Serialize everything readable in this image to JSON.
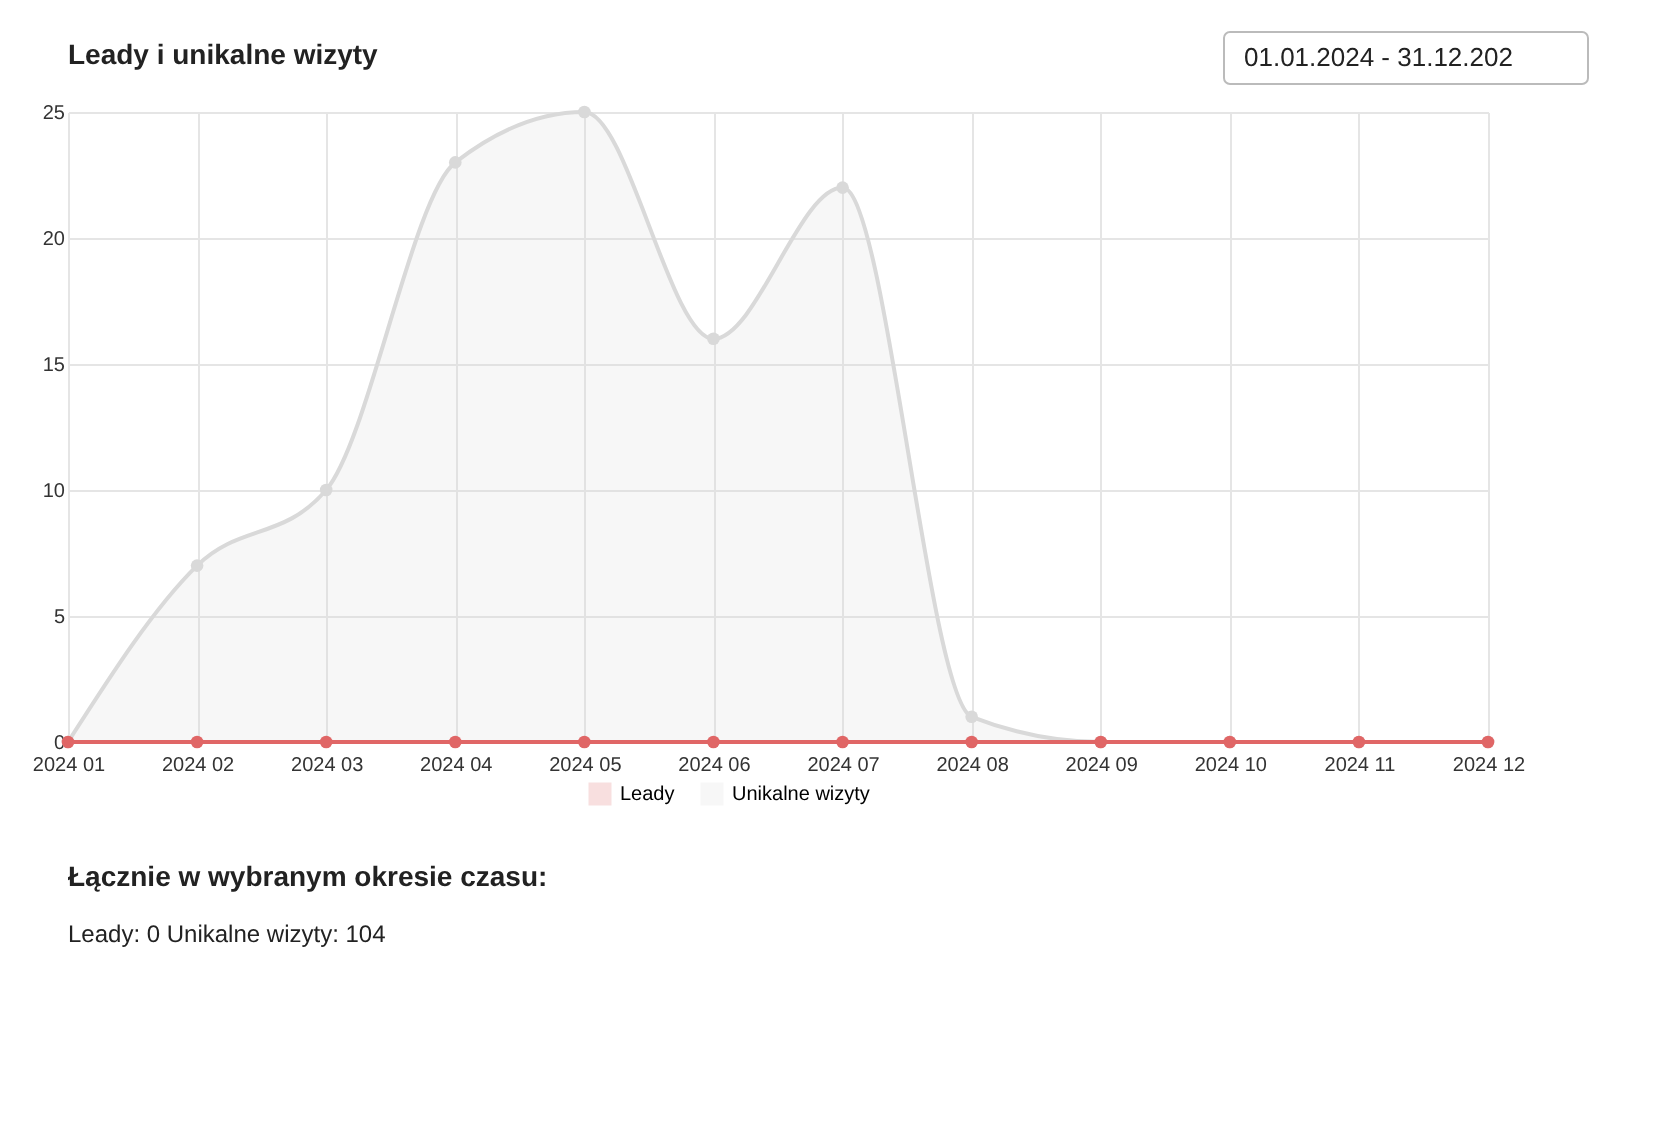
{
  "chart_data": {
    "type": "area",
    "title": "Leady i unikalne wizyty",
    "categories": [
      "2024 01",
      "2024 02",
      "2024 03",
      "2024 04",
      "2024 05",
      "2024 06",
      "2024 07",
      "2024 08",
      "2024 09",
      "2024 10",
      "2024 11",
      "2024 12"
    ],
    "series": [
      {
        "name": "Unikalne wizyty",
        "color": "#d9d9d9",
        "values": [
          0,
          7,
          10,
          23,
          25,
          16,
          22,
          1,
          0,
          0,
          0,
          0
        ]
      },
      {
        "name": "Leady",
        "color": "#e06666",
        "type": "line",
        "values": [
          0,
          0,
          0,
          0,
          0,
          0,
          0,
          0,
          0,
          0,
          0,
          0
        ]
      }
    ],
    "ylim": [
      0,
      25
    ],
    "yticks": [
      0,
      5,
      10,
      15,
      20,
      25
    ],
    "grid": true,
    "legend": "bottom",
    "marker": "circle",
    "annotations": [
      "01.01.2024 - 31.12.202",
      "Łącznie w wybranym okresie czasu:",
      "Leady: 0    Unikalne wizyty: 104"
    ]
  }
}
